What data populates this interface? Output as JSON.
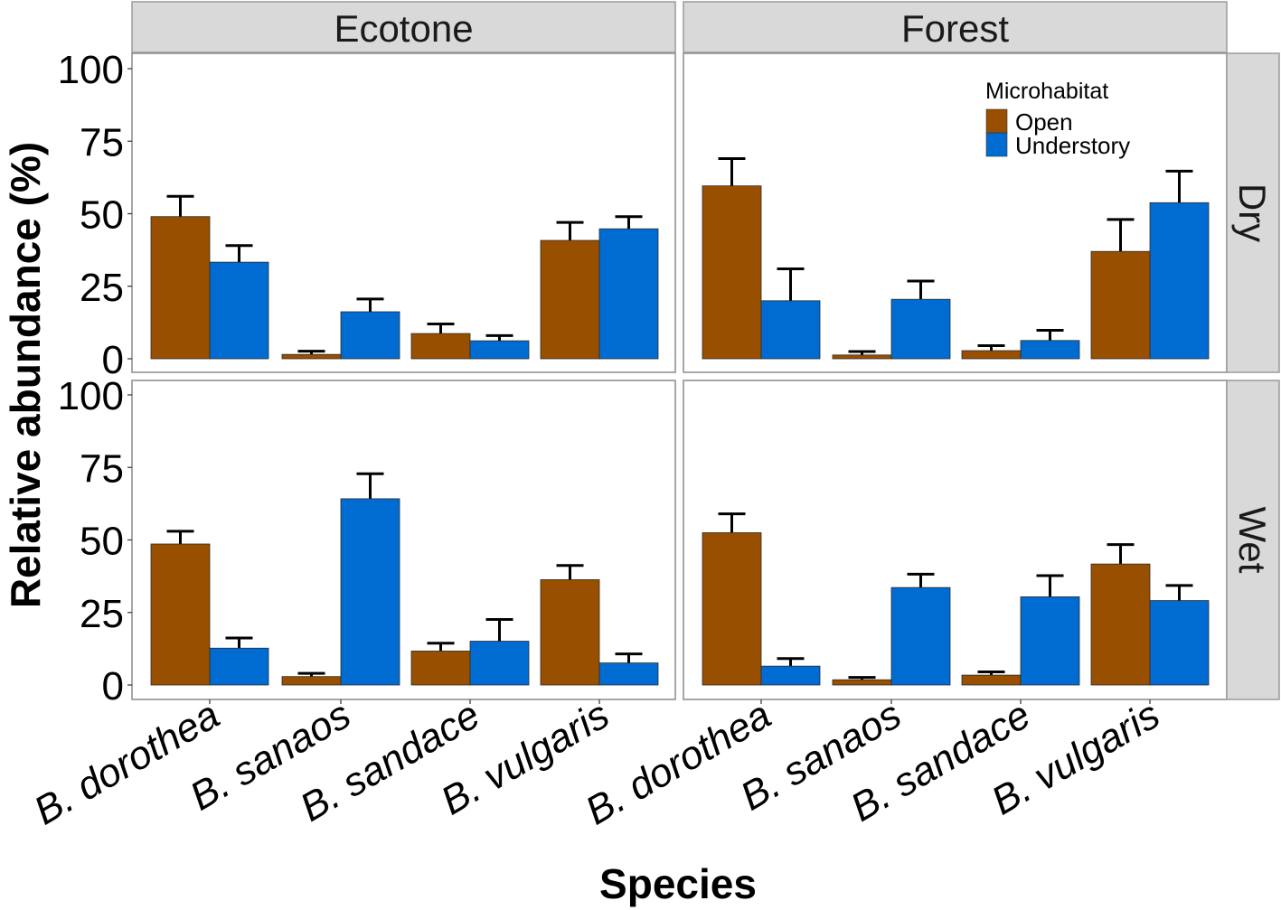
{
  "chart_data": {
    "type": "bar",
    "subtype": "grouped bar with error bars, faceted",
    "xlabel": "Species",
    "ylabel": "Relative abundance (%)",
    "ylim": [
      0,
      100
    ],
    "yticks": [
      0,
      25,
      50,
      75,
      100
    ],
    "grid": false,
    "categories": [
      "B. dorothea",
      "B. sanaos",
      "B. sandace",
      "B. vulgaris"
    ],
    "facet_columns": [
      "Ecotone",
      "Forest"
    ],
    "facet_rows": [
      "Dry",
      "Wet"
    ],
    "legend": {
      "title": "Microhabitat",
      "placement": "top-right of Forest/Dry panel",
      "entries": [
        {
          "name": "Open",
          "color": "#994F00"
        },
        {
          "name": "Understory",
          "color": "#006CD1"
        }
      ]
    },
    "panels": [
      {
        "column": "Ecotone",
        "row": "Dry",
        "series": [
          {
            "name": "Open",
            "values": [
              49,
              1.5,
              8.7,
              40.8
            ],
            "error_upper": [
              56,
              2.6,
              12,
              47
            ]
          },
          {
            "name": "Understory",
            "values": [
              33.3,
              16.2,
              6.2,
              44.8
            ],
            "error_upper": [
              39,
              20.6,
              8,
              49
            ]
          }
        ]
      },
      {
        "column": "Forest",
        "row": "Dry",
        "series": [
          {
            "name": "Open",
            "values": [
              59.6,
              1.3,
              2.8,
              37
            ],
            "error_upper": [
              69,
              2.5,
              4.5,
              48
            ]
          },
          {
            "name": "Understory",
            "values": [
              20,
              20.5,
              6.3,
              53.8
            ],
            "error_upper": [
              31,
              26.8,
              9.8,
              64.7
            ]
          }
        ]
      },
      {
        "column": "Ecotone",
        "row": "Wet",
        "series": [
          {
            "name": "Open",
            "values": [
              48.6,
              2.9,
              11.7,
              36.3
            ],
            "error_upper": [
              53,
              4,
              14.4,
              41.2
            ]
          },
          {
            "name": "Understory",
            "values": [
              12.7,
              64.2,
              15.1,
              7.6
            ],
            "error_upper": [
              16.2,
              72.8,
              22.6,
              10.7
            ]
          }
        ]
      },
      {
        "column": "Forest",
        "row": "Wet",
        "series": [
          {
            "name": "Open",
            "values": [
              52.5,
              1.8,
              3.4,
              41.7
            ],
            "error_upper": [
              59,
              2.6,
              4.5,
              48.4
            ]
          },
          {
            "name": "Understory",
            "values": [
              6.5,
              33.6,
              30.4,
              29.1
            ],
            "error_upper": [
              9.1,
              38.2,
              37.7,
              34.3
            ]
          }
        ]
      }
    ]
  }
}
